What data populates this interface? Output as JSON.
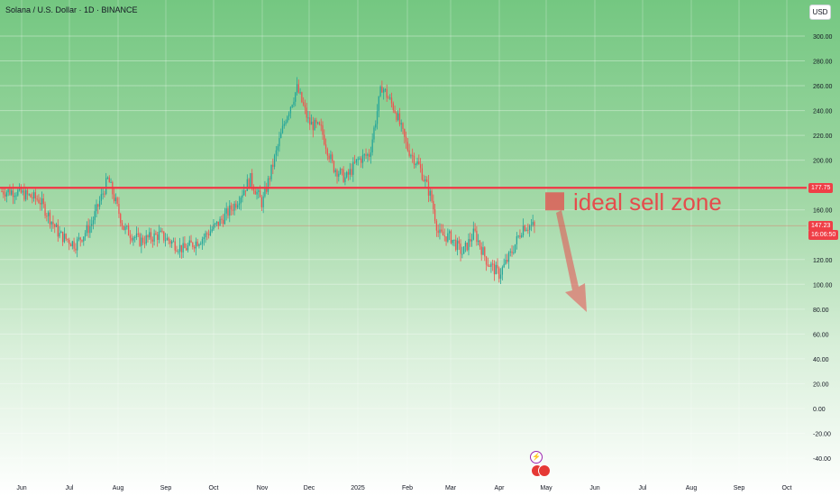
{
  "symbol_title": "Solana / U.S. Dollar · 1D · BINANCE",
  "currency_label": "USD",
  "annotation_text": "ideal sell zone",
  "resistance_label": "177.75",
  "current_price_label": "147.23",
  "countdown_label": "16:06:50",
  "colors": {
    "up": "#26a69a",
    "down": "#ef5350",
    "resistance": "#f23645",
    "annotation": "#e54c4c",
    "bg_top": "#7cc987",
    "bg_bottom": "#ffffff"
  },
  "chart_data": {
    "type": "candlestick",
    "y_ticks": [
      "300.00",
      "280.00",
      "260.00",
      "240.00",
      "220.00",
      "200.00",
      "177.75",
      "160.00",
      "147.23",
      "120.00",
      "100.00",
      "80.00",
      "60.00",
      "40.00",
      "20.00",
      "0.00",
      "-20.00",
      "-40.00"
    ],
    "x_ticks": [
      "Jun",
      "Jul",
      "Aug",
      "Sep",
      "Oct",
      "Nov",
      "Dec",
      "2025",
      "Feb",
      "Mar",
      "Apr",
      "May",
      "Jun",
      "Jul",
      "Aug",
      "Sep",
      "Oct"
    ],
    "ylim": [
      -40,
      310
    ],
    "horizontal_levels": [
      177.75
    ],
    "current_price": 147.23,
    "anchors": [
      {
        "date": "Jun",
        "price": 175
      },
      {
        "date": "Jun",
        "price": 168
      },
      {
        "date": "Jul",
        "price": 140
      },
      {
        "date": "Jul",
        "price": 132
      },
      {
        "date": "Jul",
        "price": 148
      },
      {
        "date": "Aug",
        "price": 185
      },
      {
        "date": "Aug",
        "price": 145
      },
      {
        "date": "Aug",
        "price": 135
      },
      {
        "date": "Sep",
        "price": 140
      },
      {
        "date": "Sep",
        "price": 128
      },
      {
        "date": "Oct",
        "price": 138
      },
      {
        "date": "Oct",
        "price": 150
      },
      {
        "date": "Oct",
        "price": 165
      },
      {
        "date": "Nov",
        "price": 185
      },
      {
        "date": "Nov",
        "price": 165
      },
      {
        "date": "Nov",
        "price": 200
      },
      {
        "date": "Nov",
        "price": 235
      },
      {
        "date": "Dec",
        "price": 258
      },
      {
        "date": "Dec",
        "price": 230
      },
      {
        "date": "Dec",
        "price": 225
      },
      {
        "date": "Dec",
        "price": 195
      },
      {
        "date": "2025",
        "price": 185
      },
      {
        "date": "2025",
        "price": 200
      },
      {
        "date": "2025",
        "price": 205
      },
      {
        "date": "2025",
        "price": 260
      },
      {
        "date": "Feb",
        "price": 240
      },
      {
        "date": "Feb",
        "price": 210
      },
      {
        "date": "Feb",
        "price": 195
      },
      {
        "date": "Feb",
        "price": 170
      },
      {
        "date": "Mar",
        "price": 140
      },
      {
        "date": "Mar",
        "price": 138
      },
      {
        "date": "Mar",
        "price": 125
      },
      {
        "date": "Mar",
        "price": 142
      },
      {
        "date": "Apr",
        "price": 118
      },
      {
        "date": "Apr",
        "price": 108
      },
      {
        "date": "Apr",
        "price": 125
      },
      {
        "date": "Apr",
        "price": 147
      }
    ]
  }
}
